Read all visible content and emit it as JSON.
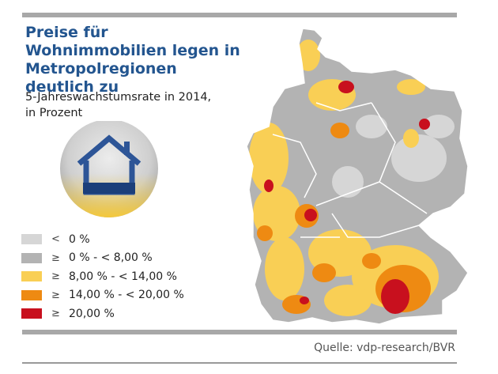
{
  "title": "Preise für Wohnimmobilien legen in Metropolregionen deutlich zu",
  "subtitle_line1": "5-Jahreswachstumsrate in 2014,",
  "subtitle_line2": "in Prozent",
  "icon": "house-icon",
  "legend": [
    {
      "symbol": "<",
      "label": "0 %",
      "color": "#d6d6d6"
    },
    {
      "symbol": "≥",
      "label": "0 % - < 8,00 %",
      "color": "#b3b3b3"
    },
    {
      "symbol": "≥",
      "label": "8,00 % - < 14,00 %",
      "color": "#f9cf55"
    },
    {
      "symbol": "≥",
      "label": "14,00 % - < 20,00 %",
      "color": "#ee8a12"
    },
    {
      "symbol": "≥",
      "label": "20,00 %",
      "color": "#c8101e"
    }
  ],
  "source": "Quelle: vdp-research/BVR",
  "colors": {
    "title": "#23558f",
    "bars": "#a8a8a8"
  }
}
